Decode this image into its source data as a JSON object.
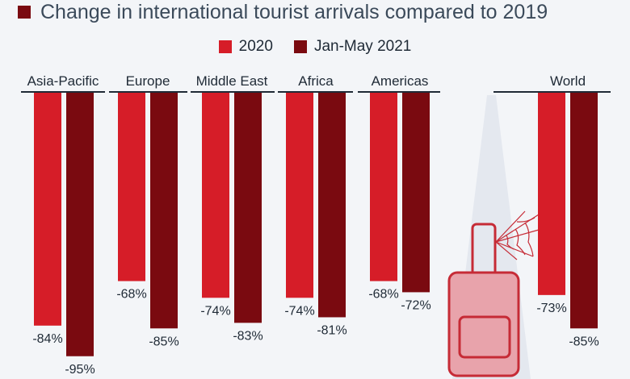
{
  "subtitle": "Change in international tourist arrivals compared to 2019",
  "colors": {
    "series_2020": "#d61d28",
    "series_2021": "#7a0a10",
    "baseline": "#1f2a36",
    "suitcase": "#e8a3ab",
    "suitcase_outline": "#c62b36",
    "spotlight": "#e4e8ef"
  },
  "illustration": "suitcase-with-cobweb",
  "chart_data": {
    "type": "bar",
    "categories": [
      "Asia-Pacific",
      "Europe",
      "Middle East",
      "Africa",
      "Americas",
      "World"
    ],
    "series": [
      {
        "name": "2020",
        "values": [
          -84,
          -68,
          -74,
          -74,
          -68,
          -73
        ],
        "labels": [
          "-84%",
          "-68%",
          "-74%",
          "-74%",
          "-68%",
          "-73%"
        ]
      },
      {
        "name": "Jan-May 2021",
        "values": [
          -95,
          -85,
          -83,
          -81,
          -72,
          -85
        ],
        "labels": [
          "-95%",
          "-85%",
          "-83%",
          "-81%",
          "-72%",
          "-85%"
        ]
      }
    ],
    "ylim": [
      -100,
      0
    ],
    "legend_position": "top-center",
    "grid": false
  }
}
